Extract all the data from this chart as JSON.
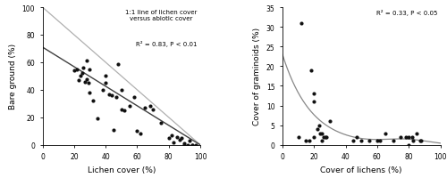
{
  "plot_a": {
    "xlabel": "Lichen cover (%)",
    "ylabel": "Bare ground (%)",
    "xlim": [
      0,
      100
    ],
    "ylim": [
      0,
      100
    ],
    "xticks": [
      0,
      20,
      40,
      60,
      80,
      100
    ],
    "yticks": [
      0,
      20,
      40,
      60,
      80,
      100
    ],
    "annotation_line1": "1:1 line of lichen cover",
    "annotation_line2": "versus abiotic cover",
    "annotation_r2": "R² = 0.83, P < 0.01",
    "points_x": [
      20,
      22,
      23,
      24,
      25,
      26,
      27,
      28,
      28,
      29,
      30,
      30,
      32,
      35,
      38,
      40,
      40,
      42,
      44,
      45,
      47,
      48,
      50,
      50,
      52,
      55,
      58,
      60,
      62,
      65,
      68,
      70,
      75,
      80,
      82,
      83,
      85,
      87,
      88,
      90,
      90,
      92,
      93,
      95,
      95,
      97
    ],
    "points_y": [
      54,
      55,
      47,
      50,
      52,
      56,
      46,
      61,
      48,
      45,
      55,
      38,
      32,
      19,
      40,
      45,
      50,
      37,
      36,
      11,
      35,
      59,
      40,
      26,
      25,
      28,
      35,
      10,
      8,
      27,
      28,
      26,
      16,
      5,
      7,
      2,
      6,
      4,
      5,
      0,
      1,
      0,
      3,
      0,
      0,
      0
    ],
    "reg_x0": 0,
    "reg_y0": 71,
    "reg_x1": 100,
    "reg_y1": 0,
    "line11_color": "#b0b0b0",
    "reg_color": "#404040",
    "dot_color": "#111111",
    "dot_size": 9
  },
  "plot_b": {
    "xlabel": "Cover of lichens (%)",
    "ylabel": "Cover of graminoids (%)",
    "xlim": [
      0,
      100
    ],
    "ylim": [
      0,
      35
    ],
    "xticks": [
      0,
      20,
      40,
      60,
      80,
      100
    ],
    "yticks": [
      0,
      5,
      10,
      15,
      20,
      25,
      30,
      35
    ],
    "annotation_r2": "R² = 0.33, P < 0.05",
    "points_x": [
      10,
      12,
      15,
      17,
      18,
      20,
      20,
      20,
      22,
      23,
      24,
      25,
      25,
      26,
      27,
      28,
      30,
      45,
      47,
      50,
      55,
      60,
      62,
      65,
      70,
      75,
      78,
      80,
      80,
      82,
      83,
      85,
      87,
      88
    ],
    "points_y": [
      2,
      31,
      1,
      1,
      19,
      13,
      11,
      2,
      4,
      5,
      3,
      3,
      1,
      2,
      2,
      2,
      6,
      1,
      2,
      1,
      1,
      1,
      1,
      3,
      1,
      2,
      2,
      2,
      0,
      2,
      1,
      3,
      1,
      1
    ],
    "curve_color": "#888888",
    "dot_color": "#111111",
    "dot_size": 9,
    "curve_a": 23.0,
    "curve_b": -0.055,
    "curve_c": 1.2,
    "curve_spread": 400,
    "curve_peak": 78
  }
}
